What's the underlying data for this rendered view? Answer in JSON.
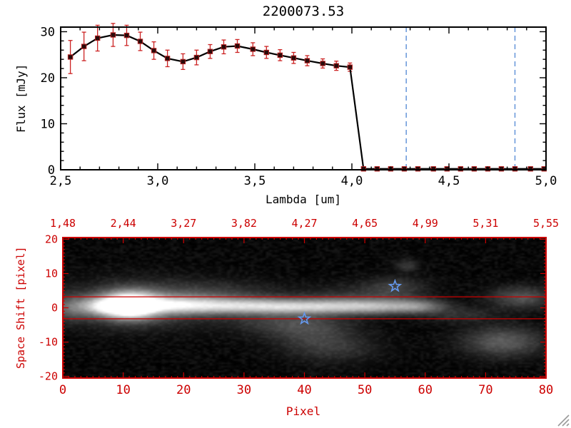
{
  "chart_data": [
    {
      "type": "line",
      "title": "2200073.53",
      "xlabel": "Lambda [um]",
      "ylabel": "Flux [mJy]",
      "xlim": [
        2.5,
        5.0
      ],
      "ylim": [
        0,
        31
      ],
      "x_tick_values": [
        2.5,
        3.0,
        3.5,
        4.0,
        4.5,
        5.0
      ],
      "x_tick_labels": [
        "2,5",
        "3,0",
        "3,5",
        "4,0",
        "4,5",
        "5,0"
      ],
      "y_tick_values": [
        0,
        10,
        20,
        30
      ],
      "y_tick_labels": [
        "0",
        "10",
        "20",
        "30"
      ],
      "series": [
        {
          "name": "flux",
          "x": [
            2.55,
            2.62,
            2.69,
            2.77,
            2.84,
            2.91,
            2.98,
            3.05,
            3.13,
            3.2,
            3.27,
            3.34,
            3.41,
            3.49,
            3.56,
            3.63,
            3.7,
            3.77,
            3.85,
            3.92,
            3.99,
            4.06,
            4.13,
            4.2,
            4.27,
            4.34,
            4.42,
            4.49,
            4.56,
            4.63,
            4.7,
            4.77,
            4.84,
            4.92,
            4.99
          ],
          "y": [
            24.5,
            26.8,
            28.6,
            29.3,
            29.2,
            27.9,
            25.9,
            24.2,
            23.5,
            24.4,
            25.7,
            26.7,
            26.9,
            26.2,
            25.5,
            24.9,
            24.3,
            23.7,
            23.1,
            22.6,
            22.3,
            0.2,
            0.2,
            0.2,
            0.2,
            0.2,
            0.2,
            0.2,
            0.2,
            0.2,
            0.2,
            0.2,
            0.2,
            0.2,
            0.2
          ],
          "yerr": [
            3.6,
            3.1,
            2.8,
            2.5,
            2.2,
            2.0,
            1.9,
            1.8,
            1.7,
            1.6,
            1.5,
            1.5,
            1.4,
            1.4,
            1.3,
            1.2,
            1.2,
            1.1,
            1.0,
            1.0,
            0.9,
            0.3,
            0.3,
            0.3,
            0.3,
            0.3,
            0.3,
            0.3,
            0.3,
            0.3,
            0.3,
            0.3,
            0.3,
            0.3,
            0.3
          ]
        }
      ],
      "vlines": {
        "x": [
          4.28,
          4.84
        ],
        "style": "dashed",
        "color": "#5b8fd6"
      },
      "colors": {
        "line": "#000000",
        "marker": "#2a0a0a",
        "marker_edge": "#b22222",
        "error": "#cc2222"
      }
    },
    {
      "type": "heatmap",
      "xlabel": "Pixel",
      "ylabel": "Space Shift [pixel]",
      "xlim": [
        0,
        80
      ],
      "ylim": [
        -20.5,
        20.5
      ],
      "x_tick_values": [
        0,
        10,
        20,
        30,
        40,
        50,
        60,
        70,
        80
      ],
      "x_tick_labels": [
        "0",
        "10",
        "20",
        "30",
        "40",
        "50",
        "60",
        "70",
        "80"
      ],
      "y_tick_values": [
        20,
        10,
        0,
        -10,
        -20
      ],
      "y_tick_labels": [
        "20",
        "10",
        "0",
        "-10",
        "-20"
      ],
      "top_axis_labels": [
        "1,48",
        "2,44",
        "3,27",
        "3,82",
        "4,27",
        "4,65",
        "4,99",
        "5,31",
        "5,55"
      ],
      "frame_color": "#cc0000",
      "hlines": [
        3.2,
        -3.2
      ],
      "stars": [
        {
          "x": 55,
          "y": 6.3
        },
        {
          "x": 40,
          "y": -3.2
        }
      ],
      "star_color": "#6699ee",
      "colormap": "gray",
      "background": "#000000",
      "intensity_blobs": [
        {
          "x": 11,
          "y": 0.8,
          "sx": 3.2,
          "sy": 2.6,
          "a": 1.2
        },
        {
          "x": 11,
          "y": 0.5,
          "sx": 1.8,
          "sy": 1.4,
          "a": 0.9
        },
        {
          "x": 6,
          "y": 0.5,
          "sx": 2.5,
          "sy": 1.8,
          "a": 0.5
        },
        {
          "x": 18,
          "y": 0.8,
          "sx": 5.0,
          "sy": 1.8,
          "a": 0.55
        },
        {
          "x": 27,
          "y": 0.6,
          "sx": 6.0,
          "sy": 1.6,
          "a": 0.5
        },
        {
          "x": 36,
          "y": 0.4,
          "sx": 6.0,
          "sy": 1.5,
          "a": 0.48
        },
        {
          "x": 45,
          "y": 0.4,
          "sx": 6.0,
          "sy": 1.5,
          "a": 0.45
        },
        {
          "x": 53,
          "y": 0.4,
          "sx": 5.0,
          "sy": 1.5,
          "a": 0.4
        },
        {
          "x": 59,
          "y": 0.5,
          "sx": 3.0,
          "sy": 1.4,
          "a": 0.3
        },
        {
          "x": 13,
          "y": 1.0,
          "sx": 9.0,
          "sy": 4.5,
          "a": 0.22
        },
        {
          "x": 25,
          "y": 4.0,
          "sx": 8.0,
          "sy": 2.5,
          "a": 0.13
        },
        {
          "x": 48,
          "y": 3.0,
          "sx": 6.0,
          "sy": 2.5,
          "a": 0.12
        },
        {
          "x": 55,
          "y": 6.0,
          "sx": 3.5,
          "sy": 2.2,
          "a": 0.16
        },
        {
          "x": 41,
          "y": -7.0,
          "sx": 5.0,
          "sy": 3.5,
          "a": 0.16
        },
        {
          "x": 45,
          "y": -12.0,
          "sx": 5.0,
          "sy": 3.0,
          "a": 0.12
        },
        {
          "x": 36,
          "y": -4.0,
          "sx": 6.0,
          "sy": 2.5,
          "a": 0.14
        },
        {
          "x": 76,
          "y": 3.0,
          "sx": 3.5,
          "sy": 2.2,
          "a": 0.25
        },
        {
          "x": 73,
          "y": -10.0,
          "sx": 4.5,
          "sy": 3.0,
          "a": 0.28
        },
        {
          "x": 1,
          "y": 0.0,
          "sx": 2.0,
          "sy": 2.5,
          "a": 0.25
        },
        {
          "x": 57,
          "y": 12.5,
          "sx": 1.3,
          "sy": 1.2,
          "a": 0.15
        },
        {
          "x": 66,
          "y": -2.0,
          "sx": 4.0,
          "sy": 1.5,
          "a": 0.12
        }
      ]
    }
  ]
}
